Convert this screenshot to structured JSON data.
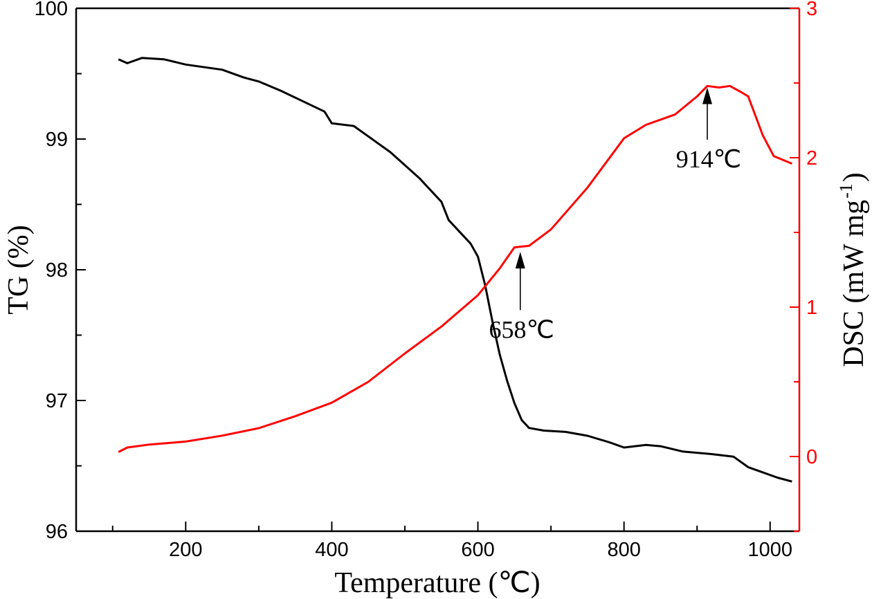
{
  "chart_data": {
    "type": "line",
    "title": "",
    "xlabel": "Temperature (℃)",
    "ylabel": "TG (%)",
    "y2label": "DSC (mW mg",
    "y2label_sup": "-1",
    "y2label_end": ")",
    "xlim": [
      50,
      1040
    ],
    "ylim": [
      96,
      100
    ],
    "y2lim": [
      -0.5,
      3
    ],
    "xticks": [
      "200",
      "400",
      "600",
      "800",
      "1000"
    ],
    "yticks": [
      "96",
      "97",
      "98",
      "99",
      "100"
    ],
    "y2ticks": [
      "0",
      "1",
      "2",
      "3"
    ],
    "grid": false,
    "colors": {
      "tg": "#000000",
      "dsc": "#ff0000"
    },
    "series": [
      {
        "name": "TG",
        "axis": "left",
        "x": [
          108,
          120,
          140,
          170,
          200,
          250,
          280,
          300,
          330,
          360,
          390,
          400,
          430,
          450,
          480,
          500,
          520,
          550,
          560,
          590,
          600,
          610,
          620,
          630,
          640,
          650,
          660,
          670,
          690,
          720,
          750,
          780,
          800,
          830,
          850,
          880,
          920,
          950,
          970,
          990,
          1010,
          1030
        ],
        "y": [
          99.61,
          99.58,
          99.62,
          99.61,
          99.57,
          99.53,
          99.47,
          99.44,
          99.37,
          99.29,
          99.21,
          99.12,
          99.1,
          99.02,
          98.9,
          98.8,
          98.7,
          98.52,
          98.38,
          98.2,
          98.1,
          97.88,
          97.6,
          97.35,
          97.15,
          96.98,
          96.85,
          96.79,
          96.77,
          96.76,
          96.73,
          96.68,
          96.64,
          96.66,
          96.65,
          96.61,
          96.59,
          96.57,
          96.49,
          96.45,
          96.41,
          96.38
        ]
      },
      {
        "name": "DSC",
        "axis": "right",
        "x": [
          108,
          120,
          150,
          200,
          250,
          300,
          350,
          400,
          450,
          500,
          550,
          600,
          630,
          650,
          670,
          700,
          750,
          800,
          830,
          870,
          900,
          914,
          930,
          945,
          960,
          970,
          990,
          1005,
          1020,
          1030
        ],
        "y": [
          0.03,
          0.06,
          0.08,
          0.1,
          0.14,
          0.19,
          0.27,
          0.36,
          0.5,
          0.69,
          0.87,
          1.08,
          1.26,
          1.4,
          1.41,
          1.52,
          1.8,
          2.13,
          2.22,
          2.29,
          2.41,
          2.48,
          2.47,
          2.48,
          2.44,
          2.41,
          2.15,
          2.01,
          1.98,
          1.96
        ]
      }
    ],
    "annotations": [
      {
        "text": "658℃",
        "x": 658,
        "arrow_from": 0.98,
        "arrow_to": 1.37,
        "axis": "right"
      },
      {
        "text": "914℃",
        "x": 914,
        "arrow_from": 2.12,
        "arrow_to": 2.47,
        "axis": "right"
      }
    ]
  }
}
